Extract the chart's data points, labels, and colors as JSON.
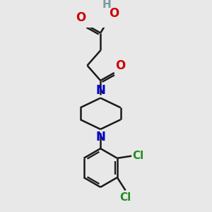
{
  "bg_color": "#e8e8e8",
  "bond_color": "#1a1a1a",
  "N_color": "#0000cc",
  "O_color": "#cc0000",
  "Cl_color": "#228B22",
  "H_color": "#7a9a9a",
  "line_width": 1.8,
  "font_size": 11,
  "fig_size": [
    3.0,
    3.0
  ],
  "dpi": 100,
  "xlim": [
    0,
    10
  ],
  "ylim": [
    0,
    10
  ]
}
